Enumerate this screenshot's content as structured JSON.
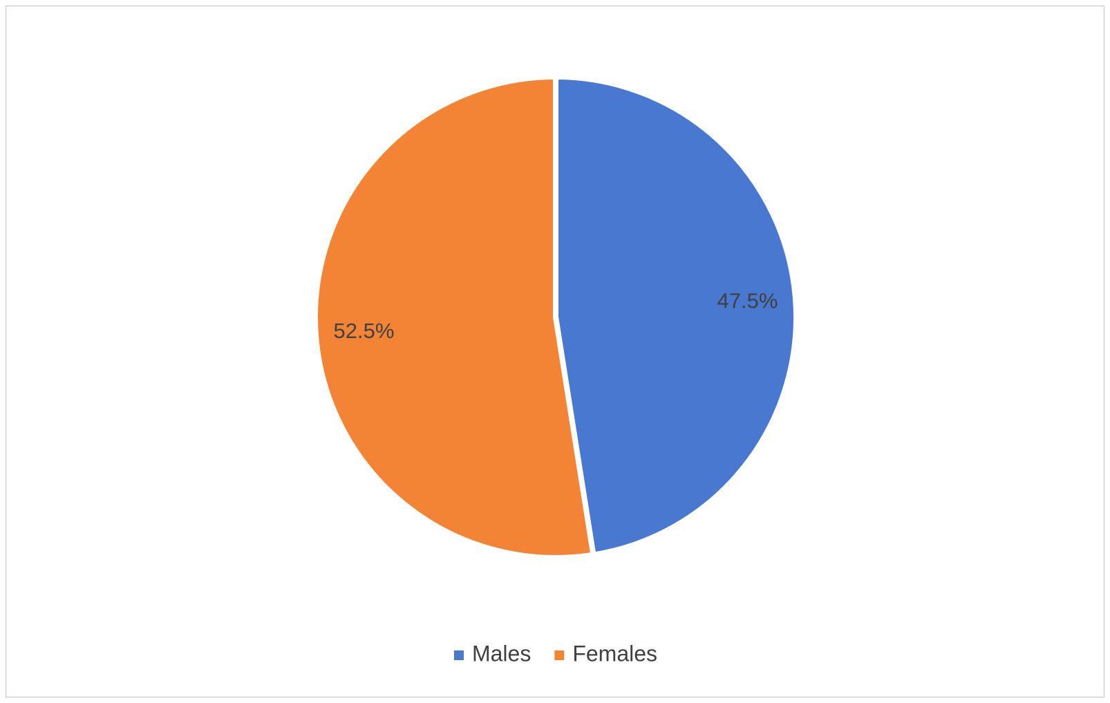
{
  "chart_data": {
    "type": "pie",
    "categories": [
      "Males",
      "Females"
    ],
    "values": [
      47.5,
      52.5
    ],
    "value_labels": [
      "47.5%",
      "52.5%"
    ],
    "colors": [
      "#4878cf",
      "#f38436"
    ],
    "legend": "bottom"
  }
}
